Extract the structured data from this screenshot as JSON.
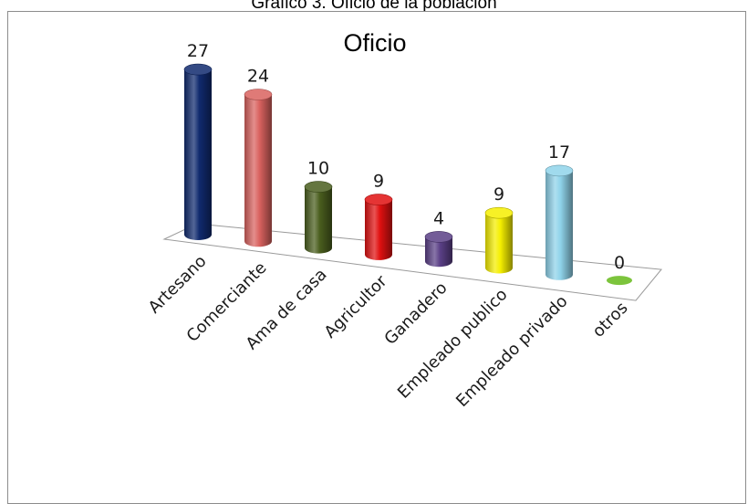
{
  "caption": "Grafico 3. Oficio de la poblacion",
  "chart_data": {
    "type": "bar",
    "style": "3d-cylinder",
    "title": "Oficio",
    "categories": [
      "Artesano",
      "Comerciante",
      "Ama de casa",
      "Agricultor",
      "Ganadero",
      "Empleado publico",
      "Empleado privado",
      "otros"
    ],
    "values": [
      27,
      24,
      10,
      9,
      4,
      9,
      17,
      0
    ],
    "data_labels": [
      "27",
      "24",
      "10",
      "9",
      "4",
      "9",
      "17",
      "0"
    ],
    "colors": [
      "#102a6e",
      "#d9625f",
      "#4a5e1e",
      "#e01010",
      "#5a3f86",
      "#f5ef00",
      "#8fd3ea",
      "#7cc43c"
    ],
    "legend": "none",
    "grid": false
  }
}
